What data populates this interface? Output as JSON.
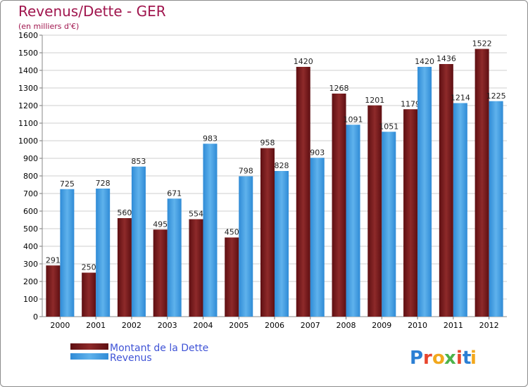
{
  "chart_data": {
    "type": "bar",
    "title": "Revenus/Dette - GER",
    "subtitle": "(en milliers d'€)",
    "categories": [
      "2000",
      "2001",
      "2002",
      "2003",
      "2004",
      "2005",
      "2006",
      "2007",
      "2008",
      "2009",
      "2010",
      "2011",
      "2012"
    ],
    "series": [
      {
        "name": "Montant de la Dette",
        "color": "#7a1a1a",
        "values": [
          291,
          250,
          560,
          495,
          554,
          450,
          958,
          1420,
          1268,
          1201,
          1179,
          1436,
          1522
        ]
      },
      {
        "name": "Revenus",
        "color": "#3f9ee0",
        "values": [
          725,
          728,
          853,
          671,
          983,
          798,
          828,
          903,
          1091,
          1051,
          1420,
          1214,
          1225
        ]
      }
    ],
    "ylim": [
      0,
      1600
    ],
    "ytick_step": 100,
    "grid": true,
    "legend_position": "bottom-left"
  },
  "logo": {
    "text": "Proxiti",
    "letters": [
      "P",
      "r",
      "o",
      "x",
      "i",
      "t",
      "i"
    ],
    "colors": [
      "#2b7fd4",
      "#e8452c",
      "#f2a81d",
      "#4db34a",
      "#e8452c",
      "#2b7fd4",
      "#f2a81d"
    ]
  }
}
